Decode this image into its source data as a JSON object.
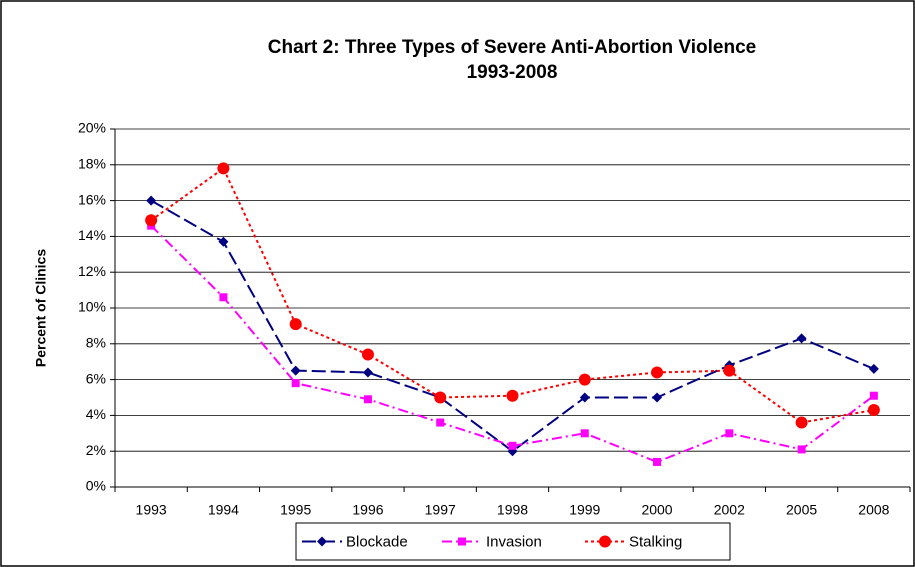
{
  "chart_data": {
    "type": "line",
    "title": [
      "Chart 2: Three Types of Severe Anti-Abortion Violence",
      "1993-2008"
    ],
    "y_label": "Percent of Clinics",
    "categories": [
      "1993",
      "1994",
      "1995",
      "1996",
      "1997",
      "1998",
      "1999",
      "2000",
      "2002",
      "2005",
      "2008"
    ],
    "series": [
      {
        "name": "Blockade",
        "color": "#000080",
        "marker": "diamond",
        "line_style": "dashed",
        "values": [
          16.0,
          13.7,
          6.5,
          6.4,
          5.0,
          2.0,
          5.0,
          5.0,
          6.8,
          8.3,
          6.6
        ]
      },
      {
        "name": "Invasion",
        "color": "#ff00ff",
        "marker": "square",
        "line_style": "dashdot",
        "values": [
          14.6,
          10.6,
          5.8,
          4.9,
          3.6,
          2.3,
          3.0,
          1.4,
          3.0,
          2.1,
          5.1
        ]
      },
      {
        "name": "Stalking",
        "color": "#ff0000",
        "marker": "circle",
        "line_style": "dotted",
        "values": [
          14.9,
          17.8,
          9.1,
          7.4,
          5.0,
          5.1,
          6.0,
          6.4,
          6.5,
          3.6,
          4.3
        ]
      }
    ],
    "ylim": [
      0,
      20
    ],
    "yticks": [
      {
        "value": 0,
        "label": "0%"
      },
      {
        "value": 2,
        "label": "2%"
      },
      {
        "value": 4,
        "label": "4%"
      },
      {
        "value": 6,
        "label": "6%"
      },
      {
        "value": 8,
        "label": "8%"
      },
      {
        "value": 10,
        "label": "10%"
      },
      {
        "value": 12,
        "label": "12%"
      },
      {
        "value": 14,
        "label": "14%"
      },
      {
        "value": 16,
        "label": "16%"
      },
      {
        "value": 18,
        "label": "18%"
      },
      {
        "value": 20,
        "label": "20%"
      }
    ],
    "grid": true,
    "legend": "bottom"
  }
}
